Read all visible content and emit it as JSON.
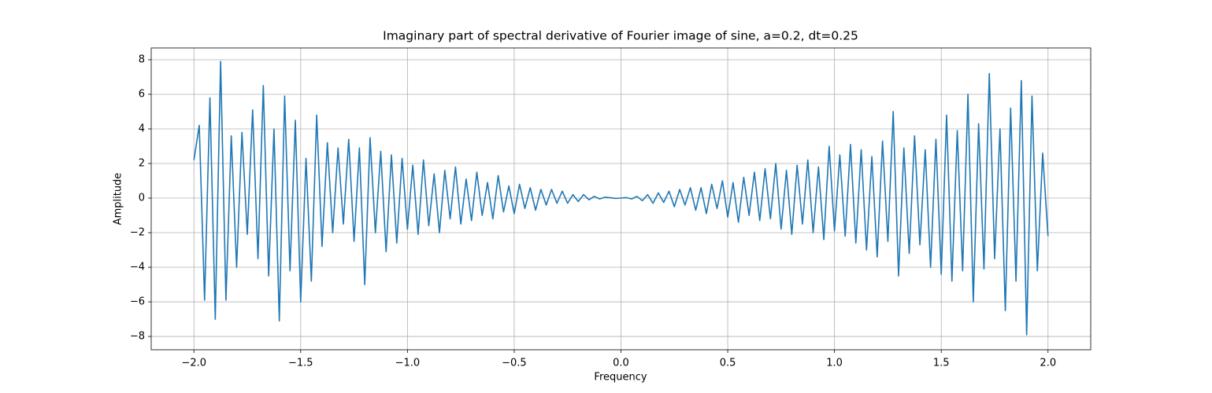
{
  "chart_data": {
    "type": "line",
    "title": "Imaginary part of spectral derivative of Fourier image of sine, a=0.2, dt=0.25",
    "xlabel": "Frequency",
    "ylabel": "Amplitude",
    "x": [
      -2.0,
      -1.975,
      -1.95,
      -1.925,
      -1.9,
      -1.875,
      -1.85,
      -1.825,
      -1.8,
      -1.775,
      -1.75,
      -1.725,
      -1.7,
      -1.675,
      -1.65,
      -1.625,
      -1.6,
      -1.575,
      -1.55,
      -1.525,
      -1.5,
      -1.475,
      -1.45,
      -1.425,
      -1.4,
      -1.375,
      -1.35,
      -1.325,
      -1.3,
      -1.275,
      -1.25,
      -1.225,
      -1.2,
      -1.175,
      -1.15,
      -1.125,
      -1.1,
      -1.075,
      -1.05,
      -1.025,
      -1.0,
      -0.975,
      -0.95,
      -0.925,
      -0.9,
      -0.875,
      -0.85,
      -0.825,
      -0.8,
      -0.775,
      -0.75,
      -0.725,
      -0.7,
      -0.675,
      -0.65,
      -0.625,
      -0.6,
      -0.575,
      -0.55,
      -0.525,
      -0.5,
      -0.475,
      -0.45,
      -0.425,
      -0.4,
      -0.375,
      -0.35,
      -0.325,
      -0.3,
      -0.275,
      -0.25,
      -0.225,
      -0.2,
      -0.175,
      -0.15,
      -0.125,
      -0.1,
      -0.075,
      -0.05,
      -0.025,
      0.0,
      0.025,
      0.05,
      0.075,
      0.1,
      0.125,
      0.15,
      0.175,
      0.2,
      0.225,
      0.25,
      0.275,
      0.3,
      0.325,
      0.35,
      0.375,
      0.4,
      0.425,
      0.45,
      0.475,
      0.5,
      0.525,
      0.55,
      0.575,
      0.6,
      0.625,
      0.65,
      0.675,
      0.7,
      0.725,
      0.75,
      0.775,
      0.8,
      0.825,
      0.85,
      0.875,
      0.9,
      0.925,
      0.95,
      0.975,
      1.0,
      1.025,
      1.05,
      1.075,
      1.1,
      1.125,
      1.15,
      1.175,
      1.2,
      1.225,
      1.25,
      1.275,
      1.3,
      1.325,
      1.35,
      1.375,
      1.4,
      1.425,
      1.45,
      1.475,
      1.5,
      1.525,
      1.55,
      1.575,
      1.6,
      1.625,
      1.65,
      1.675,
      1.7,
      1.725,
      1.75,
      1.775,
      1.8,
      1.825,
      1.85,
      1.875,
      1.9,
      1.925,
      1.95,
      1.975,
      2.0
    ],
    "series": [
      {
        "color": "#1f77b4",
        "values": [
          2.2,
          4.2,
          -5.9,
          5.8,
          -7.0,
          7.9,
          -5.9,
          3.6,
          -4.0,
          3.8,
          -2.1,
          5.1,
          -3.5,
          6.5,
          -4.5,
          4.0,
          -7.1,
          5.9,
          -4.2,
          4.5,
          -6.0,
          2.3,
          -4.8,
          4.8,
          -2.8,
          3.2,
          -2.0,
          2.9,
          -1.5,
          3.4,
          -2.5,
          2.9,
          -5.0,
          3.5,
          -2.0,
          2.7,
          -3.1,
          2.5,
          -2.6,
          2.3,
          -1.8,
          1.9,
          -2.1,
          2.2,
          -1.6,
          1.4,
          -2.0,
          1.6,
          -1.2,
          1.8,
          -1.5,
          1.1,
          -1.3,
          1.5,
          -1.0,
          0.9,
          -1.2,
          1.3,
          -0.8,
          0.7,
          -0.9,
          0.8,
          -0.6,
          0.6,
          -0.7,
          0.5,
          -0.4,
          0.5,
          -0.3,
          0.4,
          -0.3,
          0.2,
          -0.2,
          0.2,
          -0.1,
          0.1,
          -0.05,
          0.05,
          0.02,
          -0.02,
          0.0,
          0.03,
          -0.05,
          0.1,
          -0.15,
          0.2,
          -0.3,
          0.3,
          -0.25,
          0.4,
          -0.5,
          0.5,
          -0.4,
          0.6,
          -0.7,
          0.6,
          -0.9,
          0.8,
          -0.6,
          1.0,
          -1.1,
          0.9,
          -1.4,
          1.2,
          -1.0,
          1.5,
          -1.3,
          1.7,
          -1.2,
          2.0,
          -1.8,
          1.6,
          -2.1,
          1.9,
          -1.5,
          2.2,
          -2.0,
          1.8,
          -2.4,
          3.0,
          -1.9,
          2.5,
          -2.2,
          3.1,
          -2.6,
          2.8,
          -3.0,
          2.4,
          -3.4,
          3.3,
          -2.5,
          5.0,
          -4.5,
          2.9,
          -3.2,
          3.6,
          -2.7,
          2.8,
          -4.0,
          3.4,
          -4.4,
          4.8,
          -4.8,
          3.9,
          -4.2,
          6.0,
          -6.0,
          4.3,
          -4.1,
          7.2,
          -3.5,
          4.0,
          -6.5,
          5.2,
          -4.8,
          6.8,
          -7.9,
          5.9,
          -4.2,
          2.6,
          -2.2
        ]
      }
    ],
    "xlim": [
      -2.2,
      2.2
    ],
    "xticks": [
      {
        "value": -2.0,
        "label": "−2.0"
      },
      {
        "value": -1.5,
        "label": "−1.5"
      },
      {
        "value": -1.0,
        "label": "−1.0"
      },
      {
        "value": -0.5,
        "label": "−0.5"
      },
      {
        "value": 0.0,
        "label": "0.0"
      },
      {
        "value": 0.5,
        "label": "0.5"
      },
      {
        "value": 1.0,
        "label": "1.0"
      },
      {
        "value": 1.5,
        "label": "1.5"
      },
      {
        "value": 2.0,
        "label": "2.0"
      }
    ],
    "ylim": [
      -8.77,
      8.68
    ],
    "yticks": [
      {
        "value": -8,
        "label": "−8"
      },
      {
        "value": -6,
        "label": "−6"
      },
      {
        "value": -4,
        "label": "−4"
      },
      {
        "value": -2,
        "label": "−2"
      },
      0,
      2,
      4,
      6,
      8
    ],
    "grid": true
  }
}
